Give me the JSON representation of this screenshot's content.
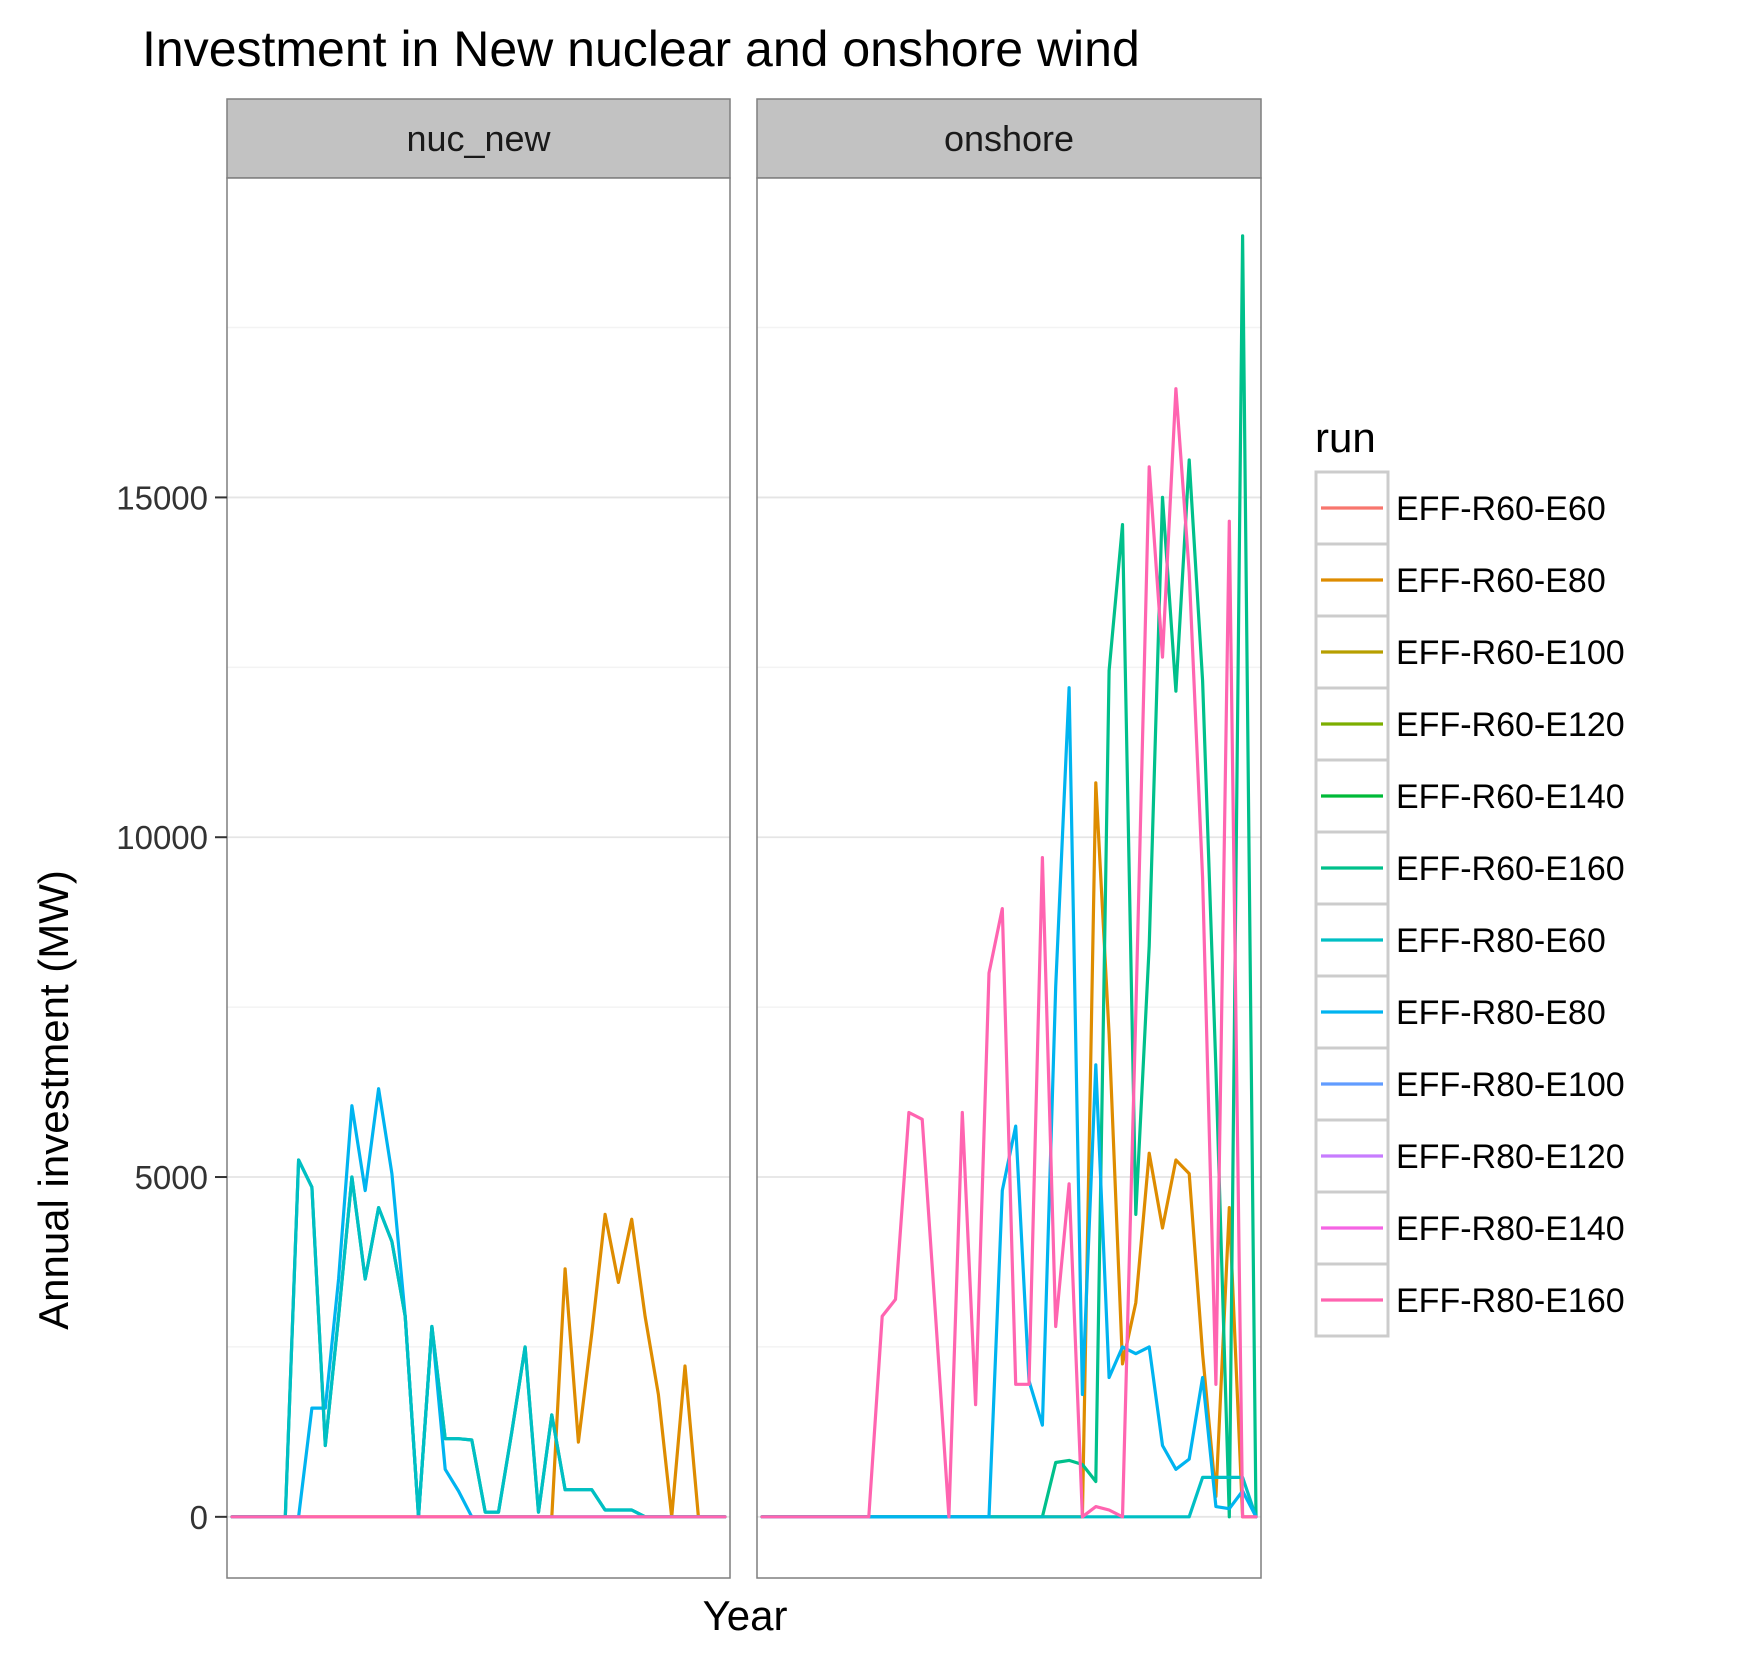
{
  "chart_data": {
    "type": "line",
    "title": "Investment in New nuclear and onshore wind",
    "xlabel": "Year",
    "ylabel": "Annual investment (MW)",
    "ylim": [
      -900,
      19700
    ],
    "yticks": [
      0,
      5000,
      10000,
      15000
    ],
    "ytick_labels": [
      "0",
      "5000",
      "10000",
      "15000"
    ],
    "legend_title": "run",
    "legend_position": "right",
    "grid": true,
    "n_x": 38,
    "series_meta": [
      {
        "name": "EFF-R60-E60",
        "color": "#F8766D"
      },
      {
        "name": "EFF-R60-E80",
        "color": "#DE8C00"
      },
      {
        "name": "EFF-R60-E100",
        "color": "#B79F00"
      },
      {
        "name": "EFF-R60-E120",
        "color": "#7CAE00"
      },
      {
        "name": "EFF-R60-E140",
        "color": "#00BA38"
      },
      {
        "name": "EFF-R60-E160",
        "color": "#00C08B"
      },
      {
        "name": "EFF-R80-E60",
        "color": "#00BFC4"
      },
      {
        "name": "EFF-R80-E80",
        "color": "#00B4F0"
      },
      {
        "name": "EFF-R80-E100",
        "color": "#619CFF"
      },
      {
        "name": "EFF-R80-E120",
        "color": "#C77CFF"
      },
      {
        "name": "EFF-R80-E140",
        "color": "#F564E3"
      },
      {
        "name": "EFF-R80-E160",
        "color": "#FF64B0"
      }
    ],
    "panels": [
      {
        "label": "nuc_new",
        "series": [
          {
            "name": "EFF-R60-E80",
            "values": [
              0,
              0,
              0,
              0,
              0,
              0,
              0,
              0,
              0,
              0,
              0,
              0,
              0,
              0,
              0,
              0,
              0,
              0,
              0,
              0,
              0,
              0,
              0,
              0,
              0,
              3650,
              1100,
              2700,
              4450,
              3450,
              4380,
              2950,
              1800,
              0,
              2220,
              0,
              0,
              0
            ]
          },
          {
            "name": "EFF-R60-E160",
            "values": [
              0,
              0,
              0,
              0,
              0,
              5250,
              4850,
              1050,
              2950,
              5000,
              3500,
              4550,
              4050,
              2950,
              0,
              2800,
              1150,
              1150,
              1130,
              70,
              70,
              1250,
              2500,
              70,
              1500,
              400,
              400,
              400,
              100,
              100,
              100,
              0,
              0,
              0,
              0,
              0,
              0,
              0
            ]
          },
          {
            "name": "EFF-R80-E80",
            "values": [
              0,
              0,
              0,
              0,
              0,
              0,
              1600,
              1600,
              3500,
              6050,
              4800,
              6300,
              5050,
              2950,
              0,
              2800,
              700,
              380,
              0,
              0,
              0,
              0,
              0,
              0,
              0,
              0,
              0,
              0,
              0,
              0,
              0,
              0,
              0,
              0,
              0,
              0,
              0,
              0
            ]
          },
          {
            "name": "EFF-R80-E60",
            "values": [
              0,
              0,
              0,
              0,
              0,
              5250,
              4850,
              1050,
              2950,
              5000,
              3500,
              4550,
              4050,
              2950,
              0,
              2800,
              1150,
              1150,
              1130,
              70,
              70,
              1250,
              2500,
              70,
              1500,
              400,
              400,
              400,
              100,
              100,
              100,
              0,
              0,
              0,
              0,
              0,
              0,
              0
            ]
          },
          {
            "name": "EFF-R80-E160",
            "values": [
              0,
              0,
              0,
              0,
              0,
              0,
              0,
              0,
              0,
              0,
              0,
              0,
              0,
              0,
              0,
              0,
              0,
              0,
              0,
              0,
              0,
              0,
              0,
              0,
              0,
              0,
              0,
              0,
              0,
              0,
              0,
              0,
              0,
              0,
              0,
              0,
              0,
              0
            ]
          }
        ]
      },
      {
        "label": "onshore",
        "series": [
          {
            "name": "EFF-R60-E80",
            "values": [
              0,
              0,
              0,
              0,
              0,
              0,
              0,
              0,
              0,
              0,
              0,
              0,
              0,
              0,
              0,
              0,
              0,
              0,
              0,
              0,
              0,
              0,
              0,
              0,
              0,
              10800,
              7100,
              2250,
              3150,
              5350,
              4250,
              5250,
              5050,
              2400,
              300,
              4550,
              0,
              0
            ]
          },
          {
            "name": "EFF-R60-E160",
            "values": [
              0,
              0,
              0,
              0,
              0,
              0,
              0,
              0,
              0,
              0,
              0,
              0,
              0,
              0,
              0,
              0,
              0,
              0,
              0,
              0,
              0,
              0,
              800,
              830,
              770,
              520,
              12450,
              14600,
              4450,
              8400,
              15000,
              12150,
              15550,
              12300,
              6600,
              0,
              18850,
              0
            ]
          },
          {
            "name": "EFF-R80-E60",
            "values": [
              0,
              0,
              0,
              0,
              0,
              0,
              0,
              0,
              0,
              0,
              0,
              0,
              0,
              0,
              0,
              0,
              0,
              0,
              0,
              0,
              0,
              0,
              0,
              0,
              0,
              0,
              0,
              0,
              0,
              0,
              0,
              0,
              0,
              580,
              580,
              580,
              580,
              0
            ]
          },
          {
            "name": "EFF-R80-E80",
            "values": [
              0,
              0,
              0,
              0,
              0,
              0,
              0,
              0,
              0,
              0,
              0,
              0,
              0,
              0,
              0,
              0,
              0,
              0,
              4800,
              5750,
              2000,
              1350,
              7800,
              12200,
              1800,
              6650,
              2050,
              2500,
              2400,
              2500,
              1050,
              700,
              850,
              2050,
              150,
              120,
              380,
              0
            ]
          },
          {
            "name": "EFF-R80-E160",
            "values": [
              0,
              0,
              0,
              0,
              0,
              0,
              0,
              0,
              0,
              2950,
              3200,
              5950,
              5850,
              2950,
              0,
              5950,
              1650,
              8000,
              8950,
              1950,
              1950,
              9700,
              2800,
              4900,
              0,
              150,
              100,
              0,
              7400,
              15450,
              12650,
              16600,
              13900,
              9400,
              1950,
              14650,
              0,
              0
            ]
          }
        ]
      }
    ]
  }
}
